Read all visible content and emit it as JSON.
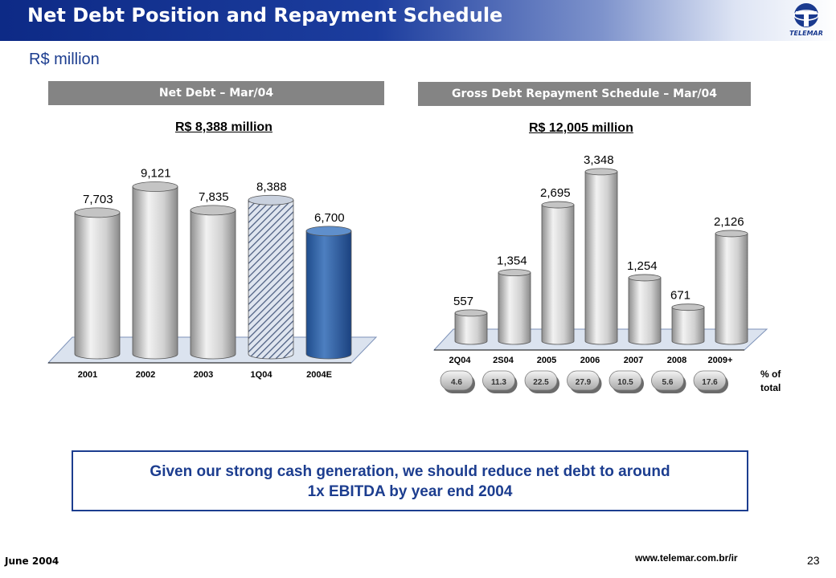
{
  "header": {
    "title": "Net Debt Position and Repayment Schedule",
    "logo_text": "TELEMAR",
    "colors": {
      "navy": "#0d2a86",
      "accent": "#1c3d8f"
    }
  },
  "subtitle": "R$ million",
  "left_panel": {
    "header": "Net Debt – Mar/04",
    "total": "R$ 8,388 million"
  },
  "right_panel": {
    "header": "Gross Debt Repayment Schedule – Mar/04",
    "total": "R$ 12,005 million",
    "pct_legend_line1": "% of",
    "pct_legend_line2": "total"
  },
  "chart_data": [
    {
      "type": "bar",
      "title": "Net Debt – Mar/04",
      "categories": [
        "2001",
        "2002",
        "2003",
        "1Q04",
        "2004E"
      ],
      "values": [
        7703,
        9121,
        7835,
        8388,
        6700
      ],
      "value_labels": [
        "7,703",
        "9,121",
        "7,835",
        "8,388",
        "6,700"
      ],
      "bar_styles": [
        "plain",
        "plain",
        "plain",
        "hatched",
        "highlight"
      ],
      "ylim": [
        0,
        10000
      ],
      "grid": false,
      "legend": "none"
    },
    {
      "type": "bar",
      "title": "Gross Debt Repayment Schedule – Mar/04",
      "categories": [
        "2Q04",
        "2S04",
        "2005",
        "2006",
        "2007",
        "2008",
        "2009+"
      ],
      "values": [
        557,
        1354,
        2695,
        3348,
        1254,
        671,
        2126
      ],
      "value_labels": [
        "557",
        "1,354",
        "2,695",
        "3,348",
        "1,254",
        "671",
        "2,126"
      ],
      "percent_of_total": [
        "4.6",
        "11.3",
        "22.5",
        "27.9",
        "10.5",
        "5.6",
        "17.6"
      ],
      "ylim": [
        0,
        3600
      ],
      "grid": false,
      "legend": "none"
    }
  ],
  "callout": {
    "line1": "Given our strong cash generation, we should reduce net debt to around",
    "line2": "1x EBITDA by year end 2004"
  },
  "footer": {
    "date": "June  2004",
    "url": "www.telemar.com.br/ir",
    "page": "23"
  }
}
